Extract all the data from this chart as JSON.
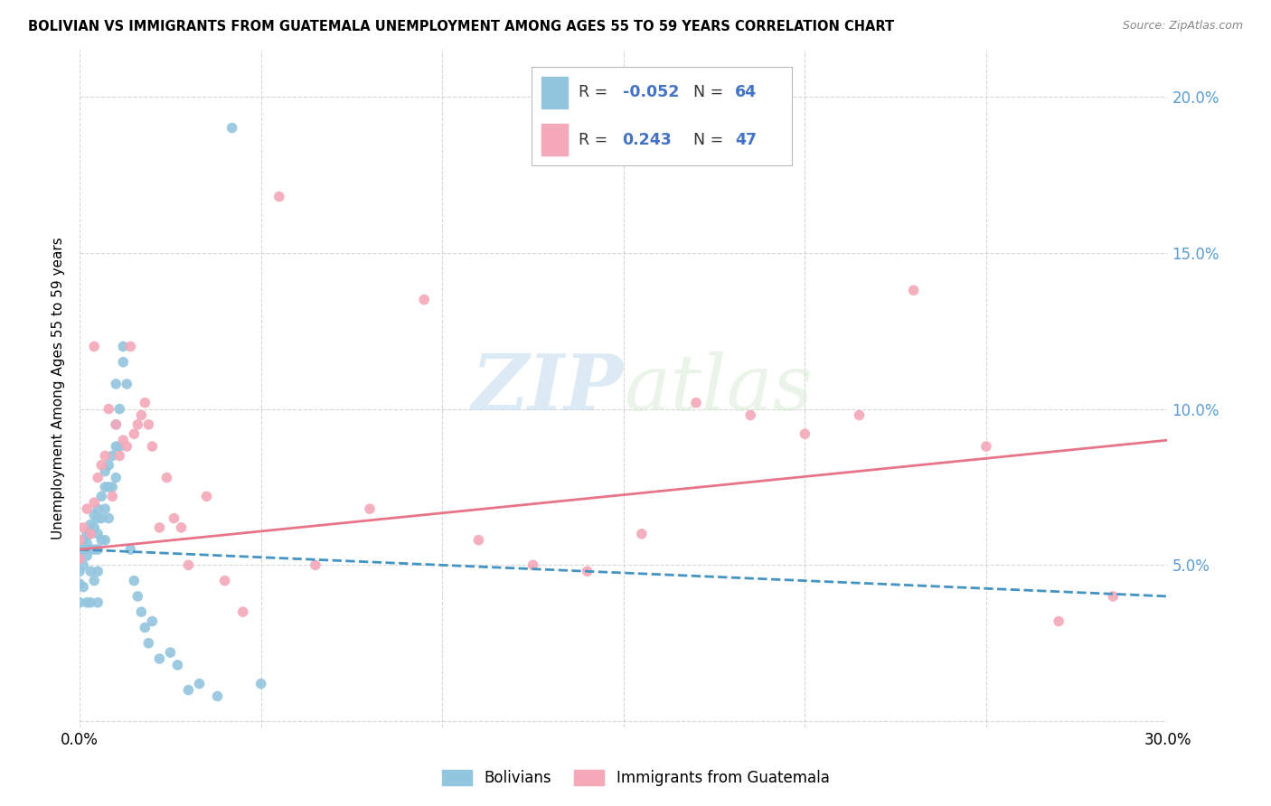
{
  "title": "BOLIVIAN VS IMMIGRANTS FROM GUATEMALA UNEMPLOYMENT AMONG AGES 55 TO 59 YEARS CORRELATION CHART",
  "source": "Source: ZipAtlas.com",
  "ylabel": "Unemployment Among Ages 55 to 59 years",
  "xlim": [
    0.0,
    0.3
  ],
  "ylim": [
    -0.002,
    0.215
  ],
  "legend1_label": "Bolivians",
  "legend2_label": "Immigrants from Guatemala",
  "R1": -0.052,
  "N1": 64,
  "R2": 0.243,
  "N2": 47,
  "blue_color": "#92C5DE",
  "pink_color": "#F4A8B8",
  "blue_line_color": "#4393C3",
  "pink_line_color": "#E8748A",
  "watermark_zip": "ZIP",
  "watermark_atlas": "atlas",
  "blue_scatter_x": [
    0.0,
    0.0,
    0.0,
    0.0,
    0.0,
    0.001,
    0.001,
    0.001,
    0.001,
    0.002,
    0.002,
    0.002,
    0.002,
    0.003,
    0.003,
    0.003,
    0.003,
    0.003,
    0.004,
    0.004,
    0.004,
    0.004,
    0.005,
    0.005,
    0.005,
    0.005,
    0.005,
    0.005,
    0.006,
    0.006,
    0.006,
    0.007,
    0.007,
    0.007,
    0.007,
    0.008,
    0.008,
    0.008,
    0.009,
    0.009,
    0.01,
    0.01,
    0.01,
    0.01,
    0.011,
    0.011,
    0.012,
    0.012,
    0.013,
    0.014,
    0.015,
    0.016,
    0.017,
    0.018,
    0.019,
    0.02,
    0.022,
    0.025,
    0.027,
    0.03,
    0.033,
    0.038,
    0.042,
    0.05
  ],
  "blue_scatter_y": [
    0.055,
    0.052,
    0.048,
    0.044,
    0.038,
    0.058,
    0.055,
    0.05,
    0.043,
    0.06,
    0.057,
    0.053,
    0.038,
    0.063,
    0.06,
    0.055,
    0.048,
    0.038,
    0.066,
    0.062,
    0.055,
    0.045,
    0.068,
    0.065,
    0.06,
    0.055,
    0.048,
    0.038,
    0.072,
    0.065,
    0.058,
    0.08,
    0.075,
    0.068,
    0.058,
    0.082,
    0.075,
    0.065,
    0.085,
    0.075,
    0.108,
    0.095,
    0.088,
    0.078,
    0.1,
    0.088,
    0.12,
    0.115,
    0.108,
    0.055,
    0.045,
    0.04,
    0.035,
    0.03,
    0.025,
    0.032,
    0.02,
    0.022,
    0.018,
    0.01,
    0.012,
    0.008,
    0.19,
    0.012
  ],
  "pink_scatter_x": [
    0.0,
    0.0,
    0.001,
    0.002,
    0.003,
    0.004,
    0.004,
    0.005,
    0.006,
    0.007,
    0.008,
    0.009,
    0.01,
    0.011,
    0.012,
    0.013,
    0.014,
    0.015,
    0.016,
    0.017,
    0.018,
    0.019,
    0.02,
    0.022,
    0.024,
    0.026,
    0.028,
    0.03,
    0.035,
    0.04,
    0.045,
    0.055,
    0.065,
    0.08,
    0.095,
    0.11,
    0.125,
    0.14,
    0.155,
    0.17,
    0.185,
    0.2,
    0.215,
    0.23,
    0.25,
    0.27,
    0.285
  ],
  "pink_scatter_y": [
    0.058,
    0.052,
    0.062,
    0.068,
    0.06,
    0.07,
    0.12,
    0.078,
    0.082,
    0.085,
    0.1,
    0.072,
    0.095,
    0.085,
    0.09,
    0.088,
    0.12,
    0.092,
    0.095,
    0.098,
    0.102,
    0.095,
    0.088,
    0.062,
    0.078,
    0.065,
    0.062,
    0.05,
    0.072,
    0.045,
    0.035,
    0.168,
    0.05,
    0.068,
    0.135,
    0.058,
    0.05,
    0.048,
    0.06,
    0.102,
    0.098,
    0.092,
    0.098,
    0.138,
    0.088,
    0.032,
    0.04
  ]
}
